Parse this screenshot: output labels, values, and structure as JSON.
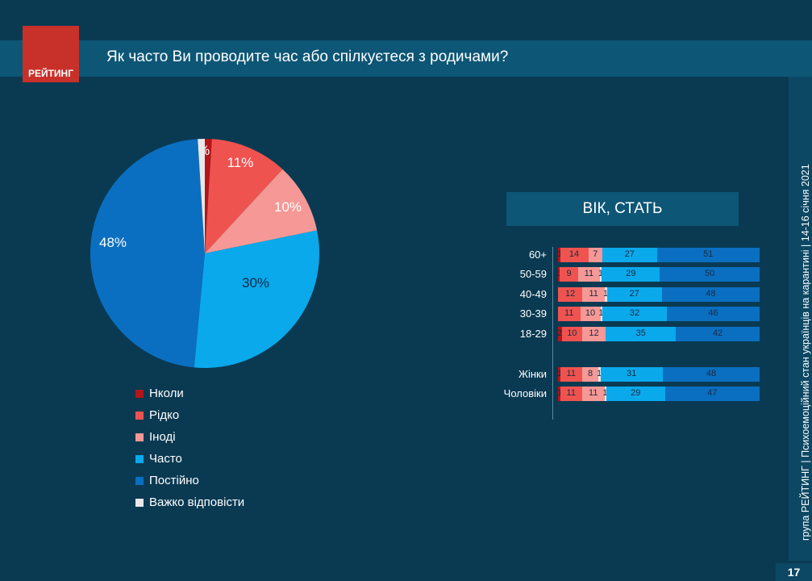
{
  "header": {
    "logo_text": "РЕЙТИНГ",
    "title": "Як часто Ви проводите час або спілкуєтеся з родичами?"
  },
  "footer": {
    "side_text": "група РЕЙТИНГ  |  Психоемоційний стан українців на карантині  |  14-16 січня 2021",
    "page_number": "17"
  },
  "colors": {
    "never": "#b3151b",
    "rarely": "#ef5350",
    "sometimes": "#f59896",
    "often": "#0aa9ec",
    "always": "#0a6fc0",
    "hard": "#e8e8e8"
  },
  "chart_data": [
    {
      "type": "pie",
      "slices": [
        {
          "name": "Нколи",
          "value": 1,
          "label": "1%"
        },
        {
          "name": "Рідко",
          "value": 11,
          "label": "11%"
        },
        {
          "name": "Іноді",
          "value": 10,
          "label": "10%"
        },
        {
          "name": "Часто",
          "value": 30,
          "label": "30%"
        },
        {
          "name": "Постійно",
          "value": 48,
          "label": "48%"
        },
        {
          "name": "Важко відповісти",
          "value": 1,
          "label": ""
        }
      ],
      "legend": [
        "Нколи",
        "Рідко",
        "Іноді",
        "Часто",
        "Постійно",
        "Важко відповісти"
      ],
      "legend_placement": "bottom"
    },
    {
      "type": "bar",
      "stacked": true,
      "orientation": "horizontal",
      "title": "ВІК, СТАТЬ",
      "series_order": [
        "Нколи",
        "Рідко",
        "Іноді",
        "Важко відповісти",
        "Часто",
        "Постійно"
      ],
      "categories": [
        "60+",
        "50-59",
        "40-49",
        "30-39",
        "18-29",
        "Жінки",
        "Чоловіки"
      ],
      "rows": [
        [
          1,
          14,
          7,
          null,
          27,
          51
        ],
        [
          1,
          9,
          11,
          1,
          29,
          50
        ],
        [
          0,
          12,
          11,
          1,
          27,
          48
        ],
        [
          0,
          11,
          10,
          1,
          32,
          46
        ],
        [
          2,
          10,
          12,
          null,
          35,
          42
        ],
        [
          1,
          11,
          8,
          1,
          31,
          48
        ],
        [
          1,
          11,
          11,
          1,
          29,
          47
        ]
      ],
      "xlim": [
        0,
        100
      ]
    }
  ]
}
